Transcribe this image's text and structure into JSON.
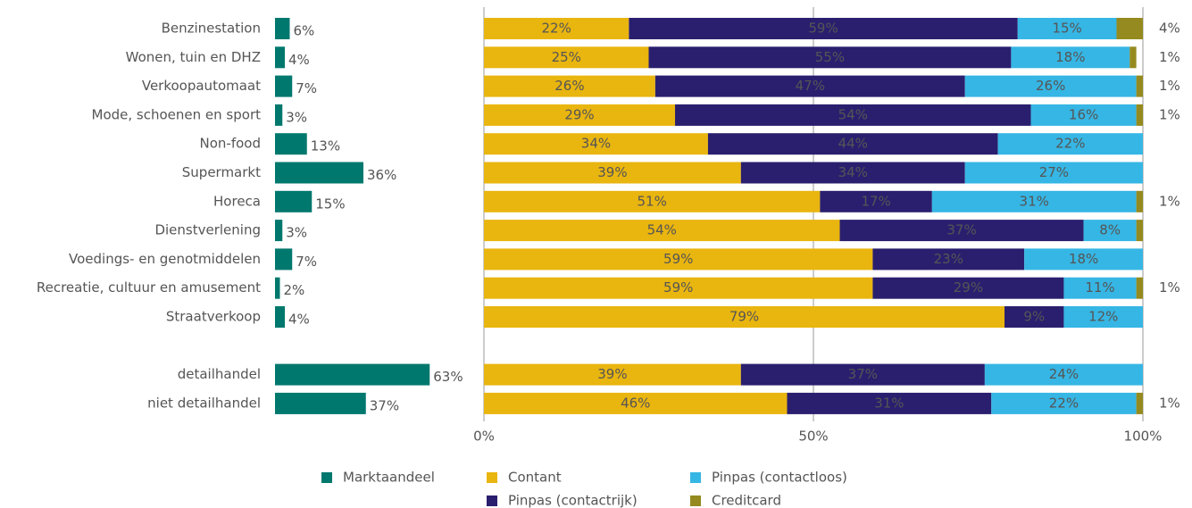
{
  "chart_data": [
    {
      "type": "bar",
      "categories": [
        "Benzinestation",
        "Wonen, tuin en DHZ",
        "Verkoopautomaat",
        "Mode, schoenen en sport",
        "Non-food",
        "Supermarkt",
        "Horeca",
        "Dienstverlening",
        "Voedings- en genotmiddelen",
        "Recreatie, cultuur en amusement",
        "Straatverkoop",
        null,
        "detailhandel",
        "niet detailhandel"
      ],
      "series": [
        {
          "name": "Marktaandeel",
          "color": "#00786e",
          "values": [
            6,
            4,
            7,
            3,
            13,
            36,
            15,
            3,
            7,
            2,
            4,
            null,
            63,
            37
          ],
          "value_labels": [
            "6%",
            "4%",
            "7%",
            "3%",
            "13%",
            "36%",
            "15%",
            "3%",
            "7%",
            "2%",
            "4%",
            null,
            "63%",
            "37%"
          ]
        }
      ]
    },
    {
      "type": "stacked_bar",
      "xlim": [
        0,
        100
      ],
      "xticks": [
        {
          "value": 0,
          "label": "0%"
        },
        {
          "value": 50,
          "label": "50%"
        },
        {
          "value": 100,
          "label": "100%"
        }
      ],
      "grid": true,
      "series": [
        {
          "name": "Contant",
          "color": "#e9b50f",
          "values": [
            22,
            25,
            26,
            29,
            34,
            39,
            51,
            54,
            59,
            59,
            79,
            null,
            39,
            46
          ],
          "value_labels": [
            "22%",
            "25%",
            "26%",
            "29%",
            "34%",
            "39%",
            "51%",
            "54%",
            "59%",
            "59%",
            "79%",
            null,
            "39%",
            "46%"
          ]
        },
        {
          "name": "Pinpas (contactrijk)",
          "color": "#2a1f6e",
          "values": [
            59,
            55,
            47,
            54,
            44,
            34,
            17,
            37,
            23,
            29,
            9,
            null,
            37,
            31
          ],
          "value_labels": [
            "59%",
            "55%",
            "47%",
            "54%",
            "44%",
            "34%",
            "17%",
            "37%",
            "23%",
            "29%",
            "9%",
            null,
            "37%",
            "31%"
          ]
        },
        {
          "name": "Pinpas (contactloos)",
          "color": "#36b6e4",
          "values": [
            15,
            18,
            26,
            16,
            22,
            27,
            31,
            8,
            18,
            11,
            12,
            null,
            24,
            22
          ],
          "value_labels": [
            "15%",
            "18%",
            "26%",
            "16%",
            "22%",
            "27%",
            "31%",
            "8%",
            "18%",
            "11%",
            "12%",
            null,
            "24%",
            "22%"
          ]
        },
        {
          "name": "Creditcard",
          "color": "#948a1f",
          "values": [
            4,
            1,
            1,
            1,
            0,
            0,
            1,
            1,
            0,
            1,
            0,
            null,
            0,
            1
          ],
          "value_labels": [
            "4%",
            "1%",
            "1%",
            "1%",
            null,
            null,
            "1%",
            null,
            null,
            "1%",
            null,
            null,
            null,
            "1%"
          ]
        }
      ]
    }
  ]
}
